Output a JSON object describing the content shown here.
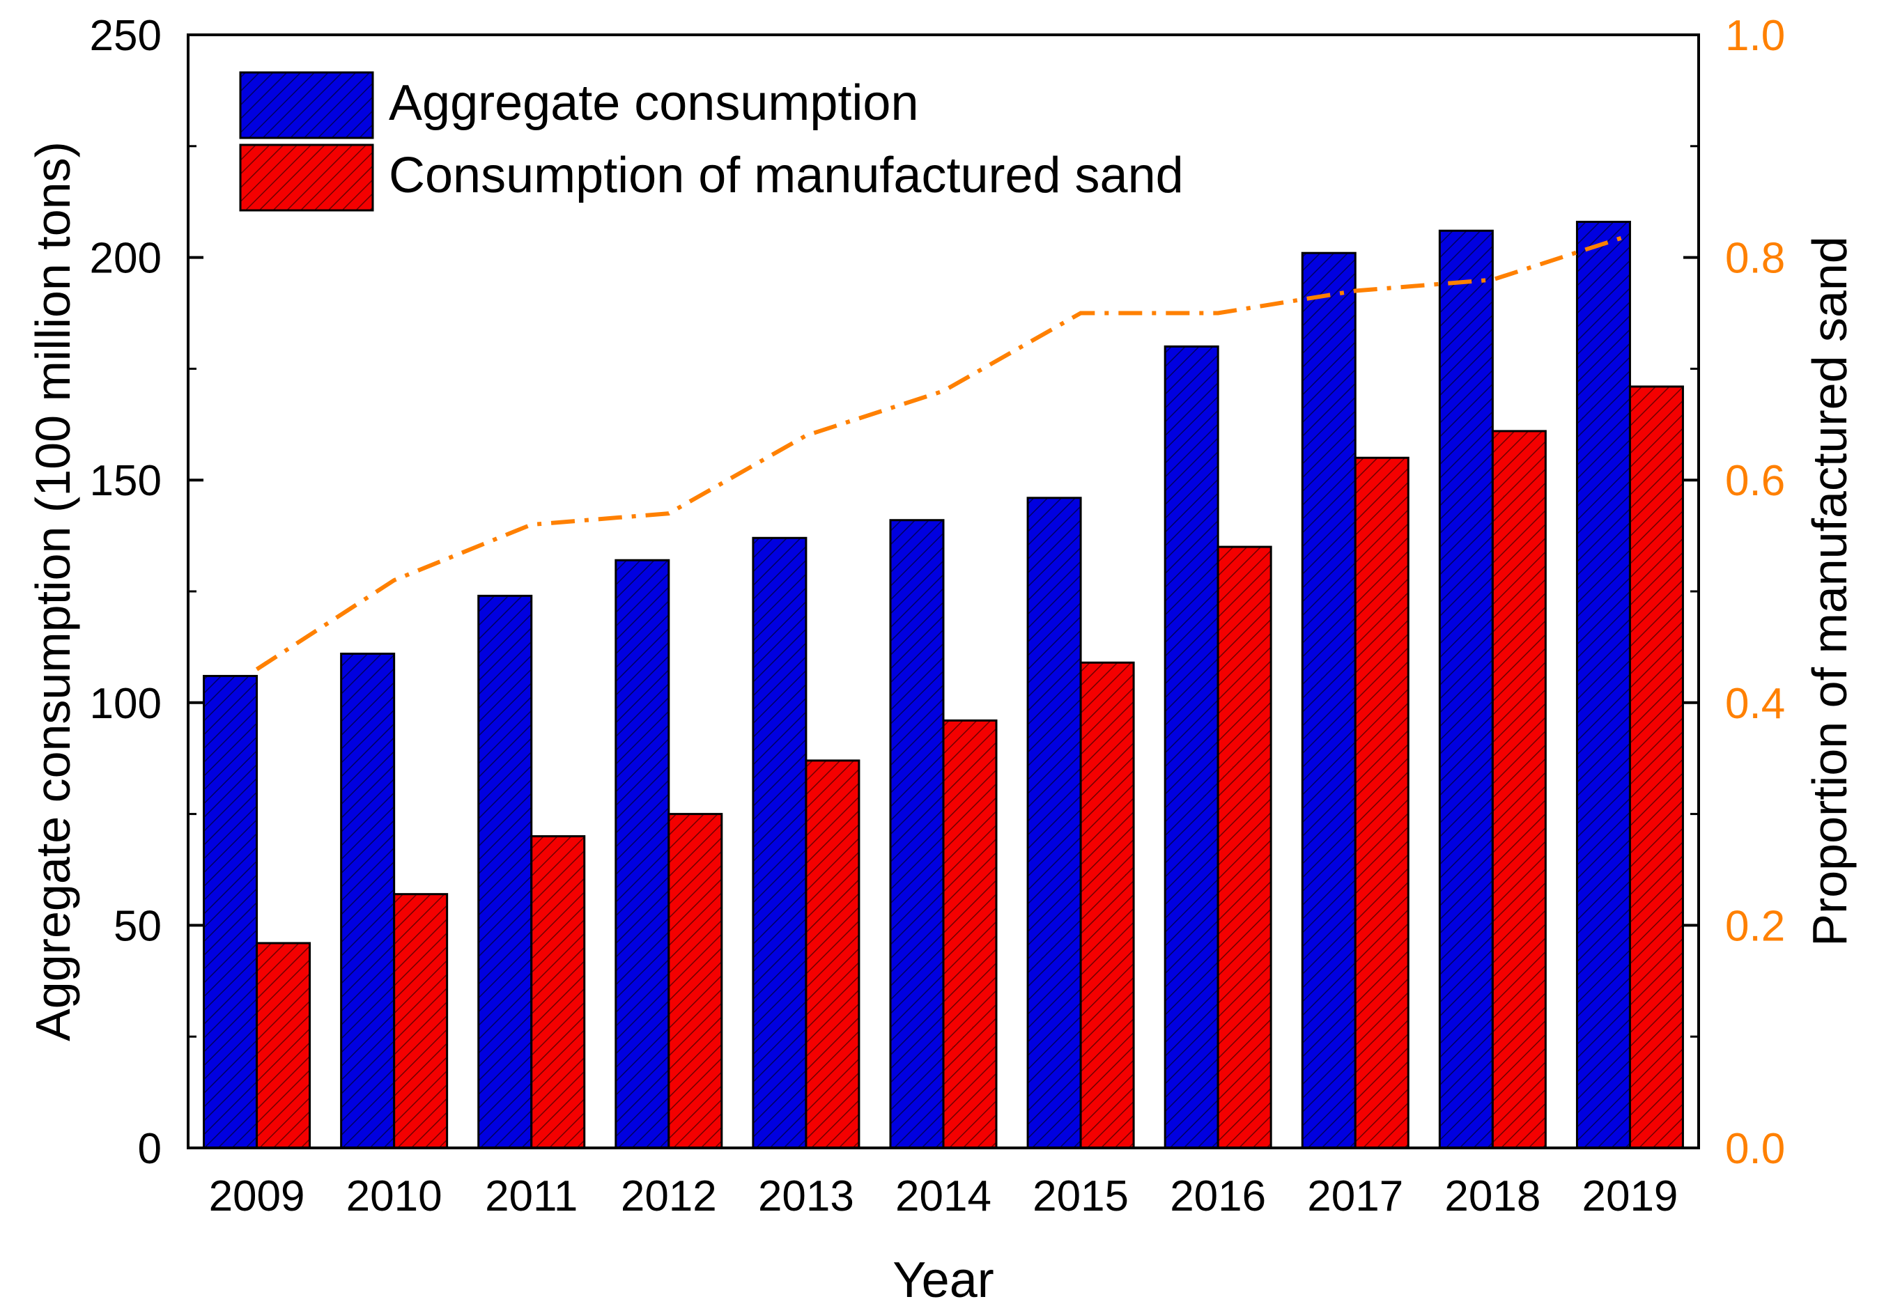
{
  "chart_data": {
    "type": "bar",
    "xlabel": "Year",
    "ylabel": "Aggregate consumption (100 million tons)",
    "y2label": "Proportion of manufactured sand",
    "categories": [
      "2009",
      "2010",
      "2011",
      "2012",
      "2013",
      "2014",
      "2015",
      "2016",
      "2017",
      "2018",
      "2019"
    ],
    "ylim": [
      0,
      250
    ],
    "y_ticks": [
      "0",
      "50",
      "100",
      "150",
      "200",
      "250"
    ],
    "y2lim": [
      0.0,
      1.0
    ],
    "y2_ticks": [
      "0.0",
      "0.2",
      "0.4",
      "0.6",
      "0.8",
      "1.0"
    ],
    "series": [
      {
        "name": "Aggregate consumption",
        "color": "#0000e0",
        "values": [
          106,
          111,
          124,
          132,
          137,
          141,
          146,
          180,
          201,
          206,
          208
        ]
      },
      {
        "name": "Consumption of manufactured sand",
        "color": "#f40000",
        "values": [
          46,
          57,
          70,
          75,
          87,
          96,
          109,
          135,
          155,
          161,
          171
        ]
      }
    ],
    "line_series": {
      "name": "Proportion of manufactured sand",
      "axis": "right",
      "color": "#ff8000",
      "style": "dash-dot",
      "values": [
        0.43,
        0.51,
        0.56,
        0.57,
        0.64,
        0.68,
        0.75,
        0.75,
        0.77,
        0.78,
        0.82
      ]
    },
    "legend_position": "top-left"
  }
}
